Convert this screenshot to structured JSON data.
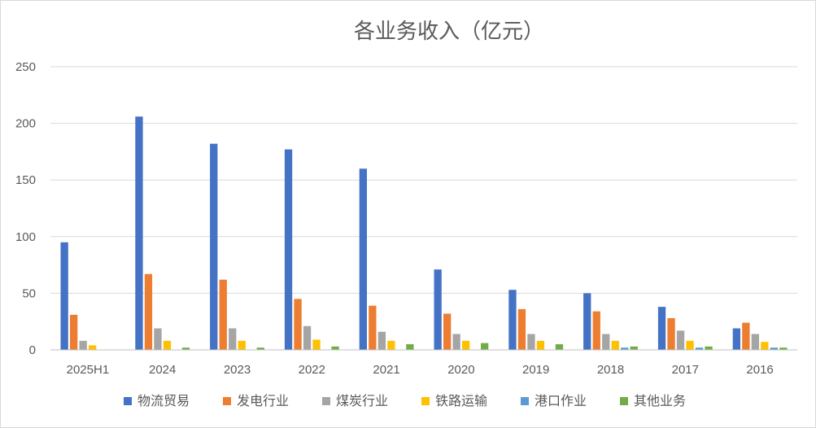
{
  "chart_data": {
    "type": "bar",
    "title": "各业务收入（亿元）",
    "xlabel": "",
    "ylabel": "",
    "ylim": [
      0,
      250
    ],
    "yticks": [
      0,
      50,
      100,
      150,
      200,
      250
    ],
    "grid": true,
    "legend_position": "bottom",
    "categories": [
      "2025H1",
      "2024",
      "2023",
      "2022",
      "2021",
      "2020",
      "2019",
      "2018",
      "2017",
      "2016"
    ],
    "series": [
      {
        "name": "物流贸易",
        "color": "#4472C4",
        "values": [
          95,
          206,
          182,
          177,
          160,
          71,
          53,
          50,
          38,
          19
        ]
      },
      {
        "name": "发电行业",
        "color": "#ED7D31",
        "values": [
          31,
          67,
          62,
          45,
          39,
          32,
          36,
          34,
          28,
          24
        ]
      },
      {
        "name": "煤炭行业",
        "color": "#A5A5A5",
        "values": [
          8,
          19,
          19,
          21,
          16,
          14,
          14,
          14,
          17,
          14
        ]
      },
      {
        "name": "铁路运输",
        "color": "#FFC000",
        "values": [
          4,
          8,
          8,
          9,
          8,
          8,
          8,
          8,
          8,
          7
        ]
      },
      {
        "name": "港口作业",
        "color": "#5B9BD5",
        "values": [
          0,
          0,
          0,
          0,
          0,
          0,
          0,
          2,
          2,
          2
        ]
      },
      {
        "name": "其他业务",
        "color": "#70AD47",
        "values": [
          0,
          2,
          2,
          3,
          5,
          6,
          5,
          3,
          3,
          2
        ]
      }
    ]
  }
}
